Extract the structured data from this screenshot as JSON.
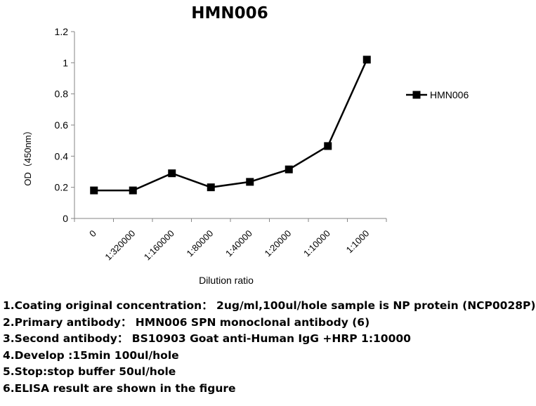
{
  "chart_data": {
    "type": "line",
    "title": "HMN006",
    "xlabel": "Dilution ratio",
    "ylabel": "OD（450nm）",
    "categories": [
      "0",
      "1:320000",
      "1:160000",
      "1:80000",
      "1:40000",
      "1:20000",
      "1:10000",
      "1:1000"
    ],
    "series": [
      {
        "name": "HMN006",
        "values": [
          0.18,
          0.18,
          0.29,
          0.2,
          0.235,
          0.315,
          0.465,
          1.02
        ]
      }
    ],
    "ylim": [
      0,
      1.2
    ],
    "yticks": [
      "0",
      "0.2",
      "0.4",
      "0.6",
      "0.8",
      "1",
      "1.2"
    ],
    "grid": false,
    "legend": "right",
    "colors": {
      "line": "#000000",
      "axis": "#868686"
    }
  },
  "notes": [
    "1.Coating original concentration： 2ug/ml,100ul/hole sample is NP protein (NCP0028P)",
    "2.Primary antibody： HMN006  SPN monoclonal antibody  (6)",
    "3.Second antibody：  BS10903  Goat anti-Human IgG +HRP  1:10000",
    "4.Develop :15min  100ul/hole",
    "5.Stop:stop buffer  50ul/hole",
    "6.ELISA result are shown in the figure"
  ]
}
